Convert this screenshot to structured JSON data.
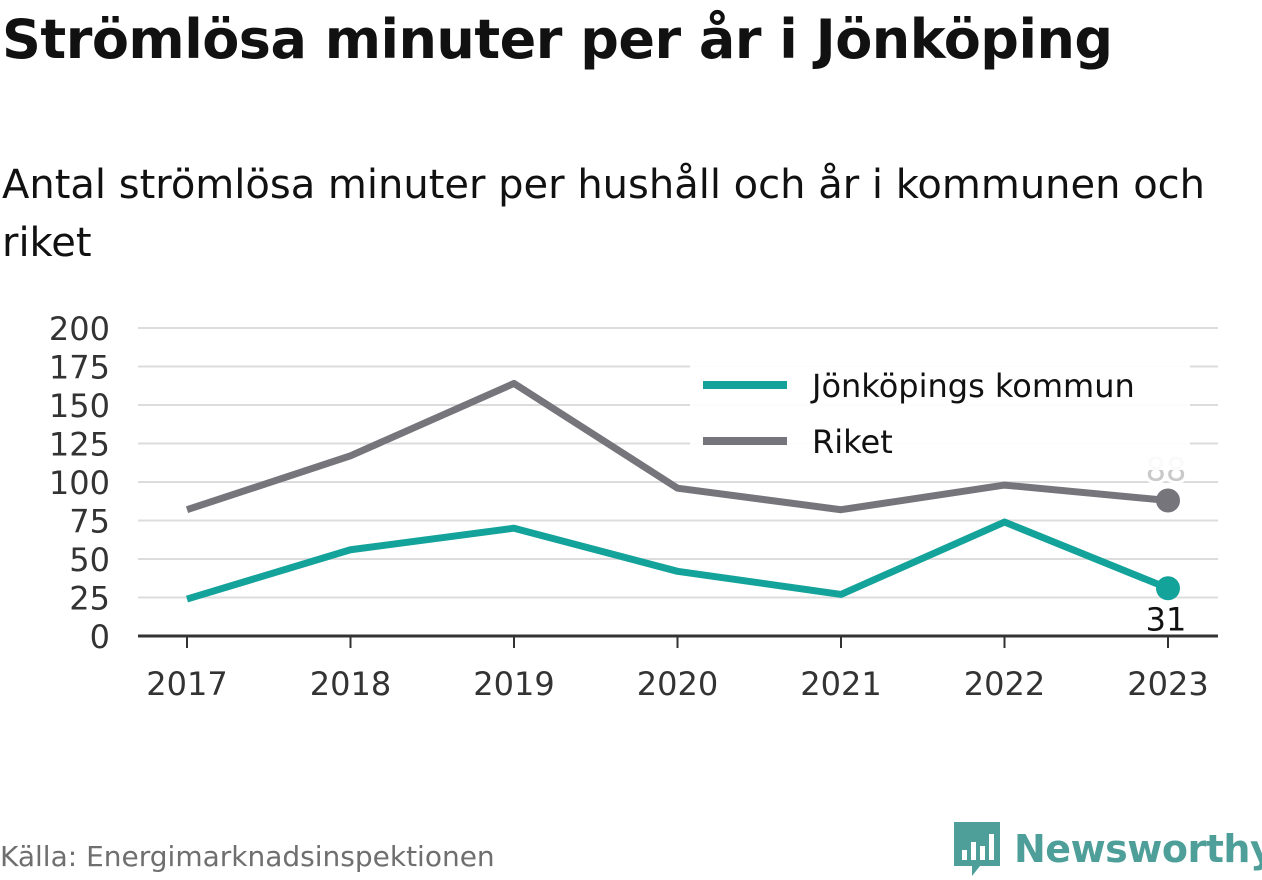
{
  "title": "Strömlösa minuter per år i Jönköping",
  "subtitle": "Antal strömlösa minuter per hushåll och år i kommunen och riket",
  "source": "Källa: Energimarknadsinspektionen",
  "brand": "Newsworthy",
  "colors": {
    "brand": "#4e9e99",
    "series_kommun": "#14a39a",
    "series_riket": "#76757c"
  },
  "chart_data": {
    "type": "line",
    "categories": [
      "2017",
      "2018",
      "2019",
      "2020",
      "2021",
      "2022",
      "2023"
    ],
    "series": [
      {
        "name": "Jönköpings kommun",
        "values": [
          24,
          56,
          70,
          42,
          27,
          74,
          31
        ],
        "color": "#14a39a",
        "end_label": "31"
      },
      {
        "name": "Riket",
        "values": [
          82,
          117,
          164,
          96,
          82,
          98,
          88
        ],
        "color": "#76757c",
        "end_label": "88"
      }
    ],
    "y_ticks": [
      "0",
      "25",
      "50",
      "75",
      "100",
      "125",
      "150",
      "175",
      "200"
    ],
    "ylim": [
      0,
      200
    ],
    "grid": true,
    "legend": "top-right"
  }
}
